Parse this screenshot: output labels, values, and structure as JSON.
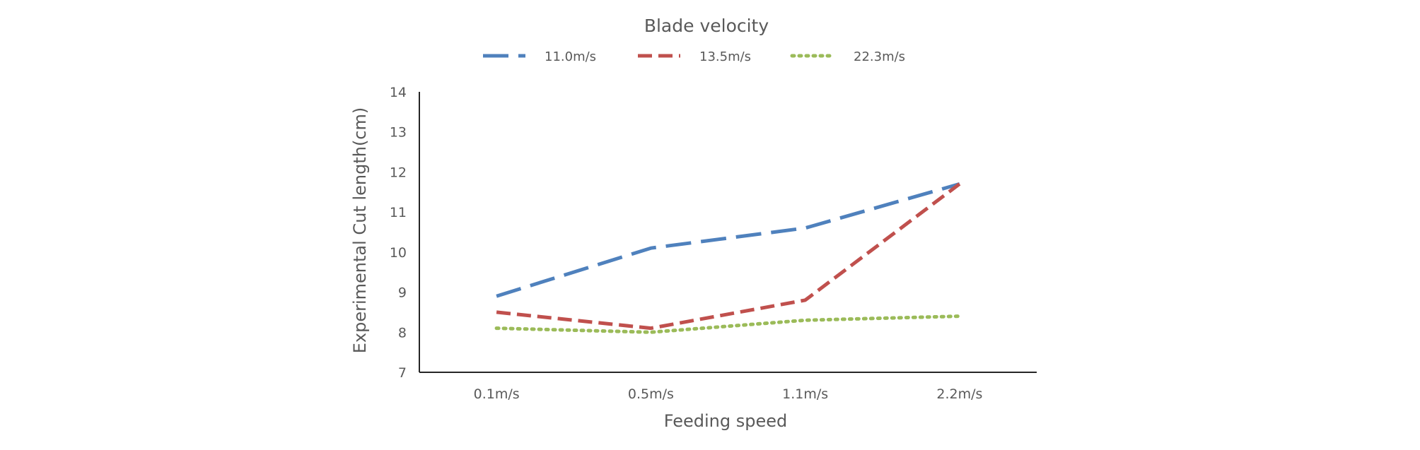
{
  "chart_data": {
    "type": "line",
    "legend_title": "Blade velocity",
    "xlabel": "Feeding speed",
    "ylabel": "Experimental Cut length(cm)",
    "categories": [
      "0.1m/s",
      "0.5m/s",
      "1.1m/s",
      "2.2m/s"
    ],
    "ylim": [
      7,
      14
    ],
    "yticks": [
      "7",
      "8",
      "9",
      "10",
      "11",
      "12",
      "13",
      "14"
    ],
    "legend_position": "top-center",
    "grid": false,
    "series": [
      {
        "name": "11.0m/s",
        "values": [
          8.9,
          10.1,
          10.6,
          11.7
        ],
        "color": "#4F81BD",
        "style": "long-dash"
      },
      {
        "name": "13.5m/s",
        "values": [
          8.5,
          8.1,
          8.8,
          11.7
        ],
        "color": "#C0504D",
        "style": "dash"
      },
      {
        "name": "22.3m/s",
        "values": [
          8.1,
          8.0,
          8.3,
          8.4
        ],
        "color": "#9BBB59",
        "style": "dot"
      }
    ]
  }
}
